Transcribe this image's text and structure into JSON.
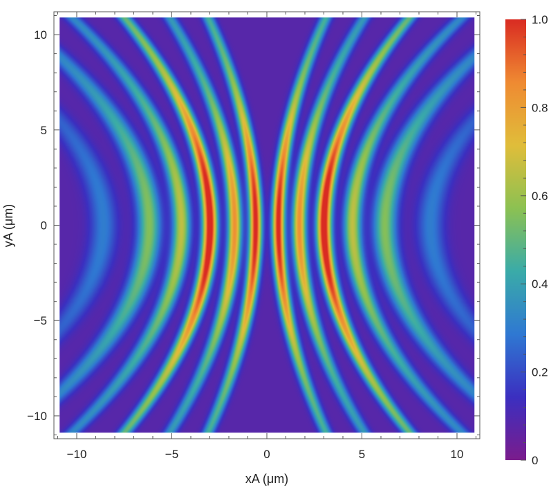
{
  "chart_data": {
    "type": "heatmap",
    "title": "",
    "xlabel": "xA (μm)",
    "ylabel": "yA (μm)",
    "xlim": [
      -11.2,
      11.2
    ],
    "ylim": [
      -11.2,
      11.2
    ],
    "data_extent": {
      "x": [
        -10.9,
        10.9
      ],
      "y": [
        -10.9,
        10.9
      ]
    },
    "x_ticks": [
      -10,
      -5,
      0,
      5,
      10
    ],
    "y_ticks": [
      -10,
      -5,
      0,
      5,
      10
    ],
    "x_tick_labels": [
      "−10",
      "−5",
      "0",
      "5",
      "10"
    ],
    "y_tick_labels": [
      "−10",
      "−5",
      "0",
      "5",
      "10"
    ],
    "colorbar": {
      "range": [
        0,
        1
      ],
      "ticks": [
        0,
        0.2,
        0.4,
        0.6,
        0.8,
        1.0
      ],
      "tick_labels": [
        "0",
        "0.2",
        "0.4",
        "0.6",
        "0.8",
        "1.0"
      ],
      "colors": [
        "#7b1c8c",
        "#3b2fc0",
        "#2f78d2",
        "#3aaba8",
        "#8cc152",
        "#e0bd3a",
        "#ef8a32",
        "#d92b22"
      ],
      "placement": "right"
    },
    "ridges": [
      {
        "x": -8.6,
        "peak": 0.22,
        "width": 0.7
      },
      {
        "x": -6.2,
        "peak": 0.48,
        "width": 0.6
      },
      {
        "x": -4.5,
        "peak": 0.58,
        "width": 0.45
      },
      {
        "x": -3.0,
        "peak": 1.0,
        "width": 0.38
      },
      {
        "x": -1.7,
        "peak": 0.76,
        "width": 0.35
      },
      {
        "x": -0.6,
        "peak": 0.95,
        "width": 0.32
      },
      {
        "x": 0.6,
        "peak": 0.95,
        "width": 0.32
      },
      {
        "x": 1.7,
        "peak": 0.76,
        "width": 0.35
      },
      {
        "x": 3.0,
        "peak": 1.0,
        "width": 0.38
      },
      {
        "x": 4.5,
        "peak": 0.58,
        "width": 0.45
      },
      {
        "x": 6.2,
        "peak": 0.48,
        "width": 0.6
      },
      {
        "x": 8.6,
        "peak": 0.22,
        "width": 0.7
      }
    ],
    "background_level": 0.08,
    "grid": false
  }
}
